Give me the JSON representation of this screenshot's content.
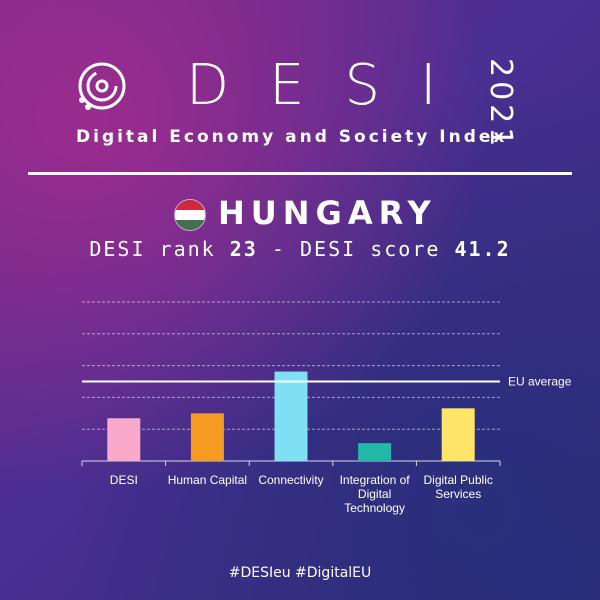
{
  "header": {
    "logo_letters": "DESI",
    "year": "2021",
    "subtitle": "Digital Economy and Society Index"
  },
  "country": {
    "name": "HUNGARY",
    "flag_colors": [
      "#cd2a3e",
      "#ffffff",
      "#436f4d"
    ]
  },
  "rank_line": {
    "rank_label": "DESI rank",
    "rank_value": "23",
    "separator": "-",
    "score_label": "DESI score",
    "score_value": "41.2"
  },
  "chart_data": {
    "type": "bar",
    "categories": [
      "DESI",
      "Human Capital",
      "Connectivity",
      "Integration of Digital Technology",
      "Digital Public Services"
    ],
    "values": [
      0.43,
      0.48,
      0.9,
      0.18,
      0.53
    ],
    "reference_line": {
      "label": "EU average",
      "value": 0.8
    },
    "ylim": [
      0,
      1.6
    ],
    "grid": true,
    "bar_colors": [
      "#f9a9c9",
      "#f59b22",
      "#7fe0f5",
      "#22b8a8",
      "#ffe46a"
    ]
  },
  "footer": {
    "hashtags": "#DESIeu  #DigitalEU"
  }
}
